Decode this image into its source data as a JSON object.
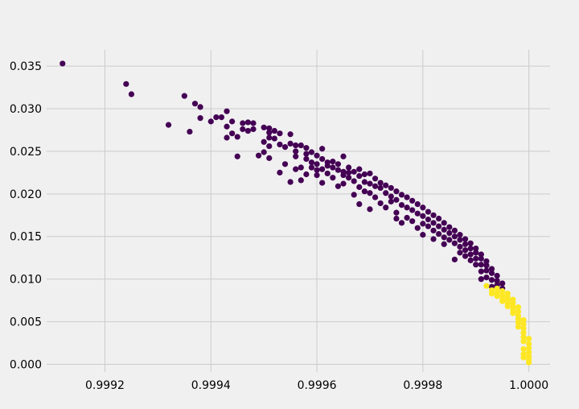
{
  "page": {
    "background": "#f0f0f0"
  },
  "chart_data": {
    "type": "scatter",
    "title": "",
    "xlabel": "",
    "ylabel": "",
    "xlim": [
      0.99909,
      1.00004
    ],
    "ylim": [
      -0.0009,
      0.0369
    ],
    "grid": true,
    "legend": "none",
    "x_ticks": [
      0.9992,
      0.9994,
      0.9996,
      0.9998,
      1.0
    ],
    "x_tick_labels": [
      "0.9992",
      "0.9994",
      "0.9996",
      "0.9998",
      "1.0000"
    ],
    "y_ticks": [
      0.0,
      0.005,
      0.01,
      0.015,
      0.02,
      0.025,
      0.03,
      0.035
    ],
    "y_tick_labels": [
      "0.000",
      "0.005",
      "0.010",
      "0.015",
      "0.020",
      "0.025",
      "0.030",
      "0.035"
    ],
    "colors": {
      "cluster_0": "#440154",
      "cluster_1": "#fde725",
      "grid": "#cbcbcb"
    },
    "series": [
      {
        "color_key": "cluster_0",
        "points": [
          [
            0.99912,
            0.0353
          ],
          [
            0.99924,
            0.0329
          ],
          [
            0.99925,
            0.0317
          ],
          [
            0.99932,
            0.0281
          ],
          [
            0.99935,
            0.0315
          ],
          [
            0.99936,
            0.0273
          ],
          [
            0.99937,
            0.0306
          ],
          [
            0.99938,
            0.0302
          ],
          [
            0.99938,
            0.0289
          ],
          [
            0.9994,
            0.0285
          ],
          [
            0.99941,
            0.029
          ],
          [
            0.99942,
            0.029
          ],
          [
            0.99943,
            0.0279
          ],
          [
            0.99943,
            0.0297
          ],
          [
            0.99943,
            0.0266
          ],
          [
            0.99944,
            0.0285
          ],
          [
            0.99944,
            0.0271
          ],
          [
            0.99945,
            0.0267
          ],
          [
            0.99945,
            0.0244
          ],
          [
            0.99946,
            0.0283
          ],
          [
            0.99946,
            0.0276
          ],
          [
            0.99947,
            0.0284
          ],
          [
            0.99947,
            0.0274
          ],
          [
            0.99948,
            0.0276
          ],
          [
            0.99948,
            0.0283
          ],
          [
            0.99949,
            0.0245
          ],
          [
            0.9995,
            0.0278
          ],
          [
            0.9995,
            0.0261
          ],
          [
            0.9995,
            0.0249
          ],
          [
            0.99951,
            0.0277
          ],
          [
            0.99951,
            0.0272
          ],
          [
            0.99951,
            0.0266
          ],
          [
            0.99951,
            0.0256
          ],
          [
            0.99951,
            0.0242
          ],
          [
            0.99952,
            0.0274
          ],
          [
            0.99952,
            0.0265
          ],
          [
            0.99953,
            0.0225
          ],
          [
            0.99953,
            0.0271
          ],
          [
            0.99953,
            0.0258
          ],
          [
            0.99954,
            0.0235
          ],
          [
            0.99954,
            0.0255
          ],
          [
            0.99955,
            0.027
          ],
          [
            0.99955,
            0.0259
          ],
          [
            0.99955,
            0.0214
          ],
          [
            0.99956,
            0.0257
          ],
          [
            0.99956,
            0.025
          ],
          [
            0.99956,
            0.0244
          ],
          [
            0.99956,
            0.0229
          ],
          [
            0.99957,
            0.0257
          ],
          [
            0.99957,
            0.0216
          ],
          [
            0.99957,
            0.0231
          ],
          [
            0.99958,
            0.0254
          ],
          [
            0.99958,
            0.0241
          ],
          [
            0.99958,
            0.0223
          ],
          [
            0.99958,
            0.0247
          ],
          [
            0.99959,
            0.0249
          ],
          [
            0.99959,
            0.0237
          ],
          [
            0.99959,
            0.0231
          ],
          [
            0.9996,
            0.0245
          ],
          [
            0.9996,
            0.0235
          ],
          [
            0.9996,
            0.0228
          ],
          [
            0.9996,
            0.0222
          ],
          [
            0.99961,
            0.0241
          ],
          [
            0.99961,
            0.0253
          ],
          [
            0.99961,
            0.0229
          ],
          [
            0.99961,
            0.0213
          ],
          [
            0.99962,
            0.0237
          ],
          [
            0.99962,
            0.0233
          ],
          [
            0.99962,
            0.0224
          ],
          [
            0.99963,
            0.0231
          ],
          [
            0.99963,
            0.0219
          ],
          [
            0.99963,
            0.0238
          ],
          [
            0.99964,
            0.0228
          ],
          [
            0.99964,
            0.0235
          ],
          [
            0.99964,
            0.0209
          ],
          [
            0.99965,
            0.0226
          ],
          [
            0.99965,
            0.0222
          ],
          [
            0.99965,
            0.0244
          ],
          [
            0.99965,
            0.0212
          ],
          [
            0.99966,
            0.0231
          ],
          [
            0.99966,
            0.0219
          ],
          [
            0.99966,
            0.0225
          ],
          [
            0.99967,
            0.0226
          ],
          [
            0.99967,
            0.0215
          ],
          [
            0.99967,
            0.0199
          ],
          [
            0.99968,
            0.0229
          ],
          [
            0.99968,
            0.0221
          ],
          [
            0.99968,
            0.0208
          ],
          [
            0.99968,
            0.0188
          ],
          [
            0.99969,
            0.0223
          ],
          [
            0.99969,
            0.0214
          ],
          [
            0.99969,
            0.0203
          ],
          [
            0.9997,
            0.0224
          ],
          [
            0.9997,
            0.0212
          ],
          [
            0.9997,
            0.0201
          ],
          [
            0.9997,
            0.0182
          ],
          [
            0.99971,
            0.0218
          ],
          [
            0.99971,
            0.0209
          ],
          [
            0.99971,
            0.0196
          ],
          [
            0.99972,
            0.0213
          ],
          [
            0.99972,
            0.0207
          ],
          [
            0.99972,
            0.0189
          ],
          [
            0.99973,
            0.021
          ],
          [
            0.99973,
            0.0201
          ],
          [
            0.99973,
            0.0184
          ],
          [
            0.99974,
            0.0207
          ],
          [
            0.99974,
            0.0197
          ],
          [
            0.99974,
            0.0191
          ],
          [
            0.99975,
            0.0203
          ],
          [
            0.99975,
            0.0193
          ],
          [
            0.99975,
            0.0178
          ],
          [
            0.99975,
            0.0171
          ],
          [
            0.99976,
            0.0199
          ],
          [
            0.99976,
            0.0187
          ],
          [
            0.99976,
            0.0166
          ],
          [
            0.99977,
            0.0196
          ],
          [
            0.99977,
            0.0184
          ],
          [
            0.99977,
            0.0172
          ],
          [
            0.99978,
            0.0192
          ],
          [
            0.99978,
            0.0181
          ],
          [
            0.99978,
            0.0168
          ],
          [
            0.99979,
            0.0188
          ],
          [
            0.99979,
            0.0177
          ],
          [
            0.99979,
            0.016
          ],
          [
            0.9998,
            0.0184
          ],
          [
            0.9998,
            0.0174
          ],
          [
            0.9998,
            0.0165
          ],
          [
            0.9998,
            0.0152
          ],
          [
            0.99981,
            0.0179
          ],
          [
            0.99981,
            0.017
          ],
          [
            0.99981,
            0.0162
          ],
          [
            0.99982,
            0.0175
          ],
          [
            0.99982,
            0.0166
          ],
          [
            0.99982,
            0.0157
          ],
          [
            0.99982,
            0.0147
          ],
          [
            0.99983,
            0.0171
          ],
          [
            0.99983,
            0.0162
          ],
          [
            0.99983,
            0.0153
          ],
          [
            0.99984,
            0.0166
          ],
          [
            0.99984,
            0.0158
          ],
          [
            0.99984,
            0.0149
          ],
          [
            0.99984,
            0.0141
          ],
          [
            0.99985,
            0.0161
          ],
          [
            0.99985,
            0.0154
          ],
          [
            0.99985,
            0.0146
          ],
          [
            0.99986,
            0.0157
          ],
          [
            0.99986,
            0.015
          ],
          [
            0.99986,
            0.0142
          ],
          [
            0.99986,
            0.0123
          ],
          [
            0.99987,
            0.0152
          ],
          [
            0.99987,
            0.0146
          ],
          [
            0.99987,
            0.0138
          ],
          [
            0.99987,
            0.0131
          ],
          [
            0.99988,
            0.0147
          ],
          [
            0.99988,
            0.0141
          ],
          [
            0.99988,
            0.0134
          ],
          [
            0.99988,
            0.0127
          ],
          [
            0.99989,
            0.0142
          ],
          [
            0.99989,
            0.0136
          ],
          [
            0.99989,
            0.0129
          ],
          [
            0.99989,
            0.0122
          ],
          [
            0.9999,
            0.0136
          ],
          [
            0.9999,
            0.0131
          ],
          [
            0.9999,
            0.0124
          ],
          [
            0.9999,
            0.0117
          ],
          [
            0.99991,
            0.0129
          ],
          [
            0.99991,
            0.0124
          ],
          [
            0.99991,
            0.0117
          ],
          [
            0.99991,
            0.0109
          ],
          [
            0.99991,
            0.01
          ],
          [
            0.99992,
            0.0121
          ],
          [
            0.99992,
            0.0116
          ],
          [
            0.99992,
            0.011
          ],
          [
            0.99992,
            0.0102
          ],
          [
            0.99993,
            0.0112
          ],
          [
            0.99993,
            0.0107
          ],
          [
            0.99993,
            0.0099
          ],
          [
            0.99993,
            0.0091
          ],
          [
            0.99994,
            0.0104
          ],
          [
            0.99994,
            0.0098
          ],
          [
            0.99994,
            0.0093
          ],
          [
            0.99995,
            0.0095
          ],
          [
            0.99995,
            0.0089
          ]
        ]
      },
      {
        "color_key": "cluster_1",
        "points": [
          [
            0.99992,
            0.0092
          ],
          [
            0.99993,
            0.0087
          ],
          [
            0.99993,
            0.0083
          ],
          [
            0.99994,
            0.0089
          ],
          [
            0.99994,
            0.0084
          ],
          [
            0.99994,
            0.008
          ],
          [
            0.99995,
            0.0086
          ],
          [
            0.99995,
            0.0081
          ],
          [
            0.99995,
            0.0077
          ],
          [
            0.99995,
            0.0074
          ],
          [
            0.99996,
            0.0083
          ],
          [
            0.99996,
            0.0079
          ],
          [
            0.99996,
            0.0075
          ],
          [
            0.99996,
            0.0071
          ],
          [
            0.99996,
            0.0068
          ],
          [
            0.99997,
            0.0076
          ],
          [
            0.99997,
            0.0072
          ],
          [
            0.99997,
            0.0068
          ],
          [
            0.99997,
            0.0064
          ],
          [
            0.99997,
            0.006
          ],
          [
            0.99998,
            0.0067
          ],
          [
            0.99998,
            0.0062
          ],
          [
            0.99998,
            0.0057
          ],
          [
            0.99998,
            0.0053
          ],
          [
            0.99998,
            0.0049
          ],
          [
            0.99998,
            0.0044
          ],
          [
            0.99999,
            0.0052
          ],
          [
            0.99999,
            0.0047
          ],
          [
            0.99999,
            0.0042
          ],
          [
            0.99999,
            0.0037
          ],
          [
            0.99999,
            0.0032
          ],
          [
            0.99999,
            0.0027
          ],
          [
            0.99999,
            0.0018
          ],
          [
            1.0,
            0.003
          ],
          [
            1.0,
            0.0024
          ],
          [
            1.0,
            0.0019
          ],
          [
            1.0,
            0.0014
          ],
          [
            1.0,
            0.0009
          ],
          [
            1.0,
            0.0005
          ],
          [
            0.99999,
            0.0012
          ],
          [
            0.99999,
            0.0008
          ],
          [
            1.0,
            0.0002
          ]
        ]
      }
    ]
  }
}
